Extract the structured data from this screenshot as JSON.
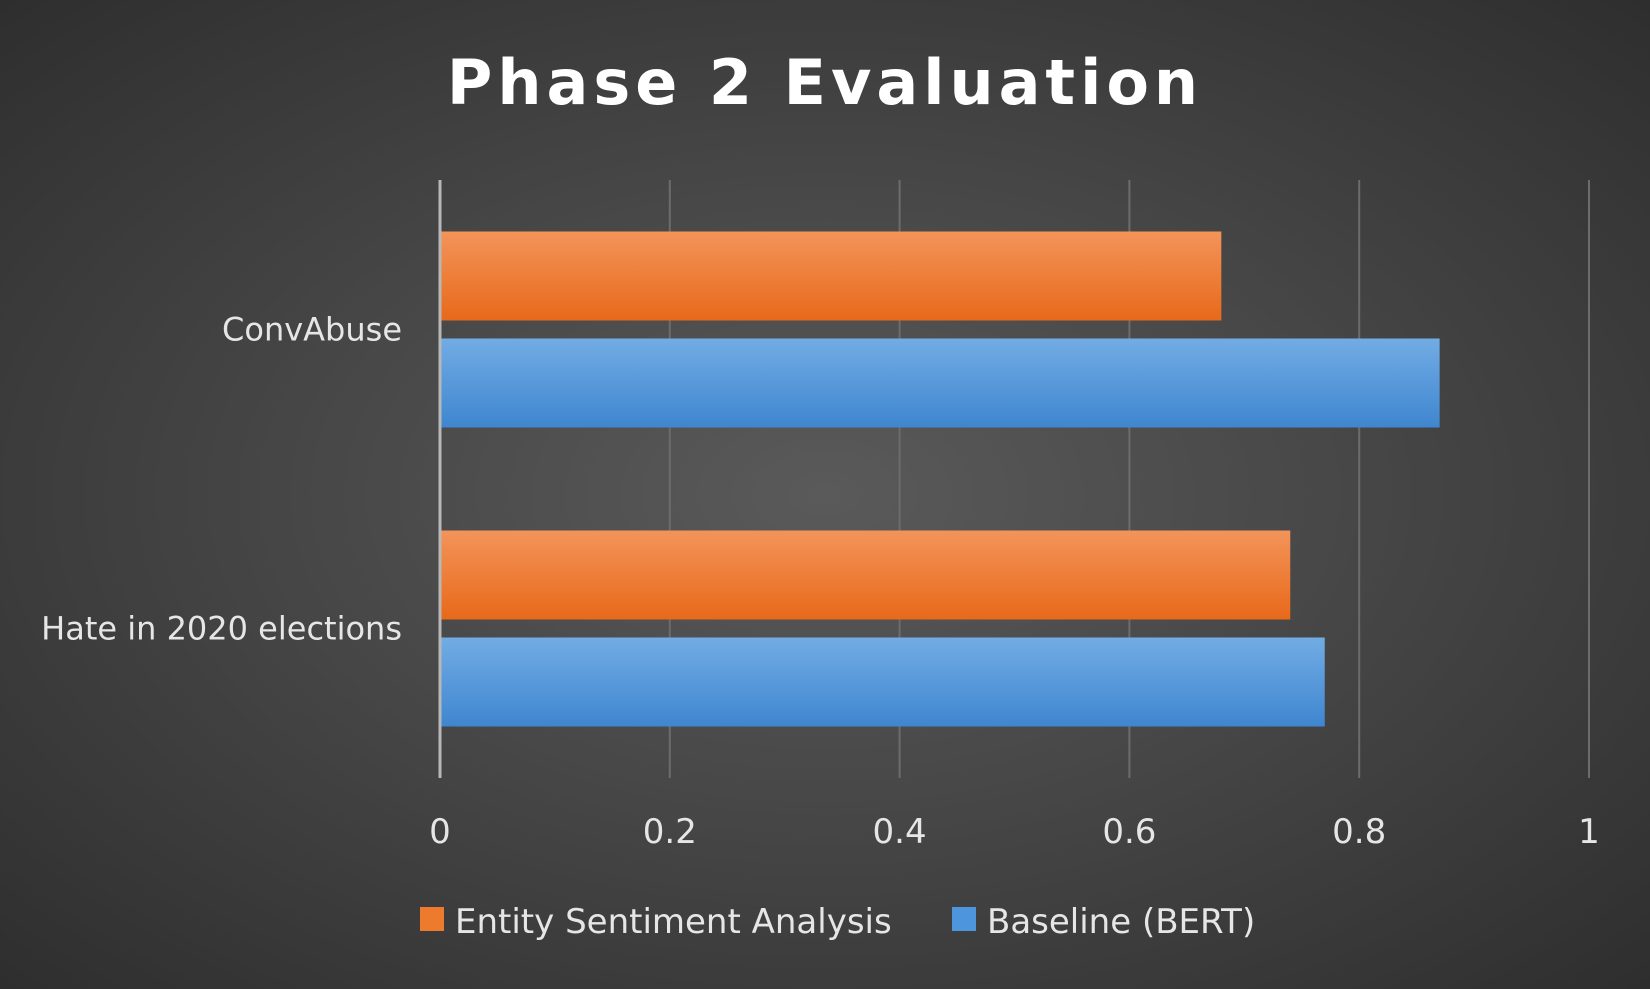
{
  "chart_data": {
    "type": "bar",
    "orientation": "horizontal",
    "title": "Phase 2 Evaluation",
    "categories": [
      "ConvAbuse",
      "Hate in 2020 elections"
    ],
    "series": [
      {
        "name": "Entity Sentiment Analysis",
        "color": "#ee7a2e",
        "values": [
          0.68,
          0.74
        ]
      },
      {
        "name": "Baseline (BERT)",
        "color": "#4d95dc",
        "values": [
          0.87,
          0.77
        ]
      }
    ],
    "xlim": [
      0,
      1
    ],
    "xticks": [
      "0",
      "0.2",
      "0.4",
      "0.6",
      "0.8",
      "1"
    ],
    "grid": true,
    "legend": "bottom"
  }
}
